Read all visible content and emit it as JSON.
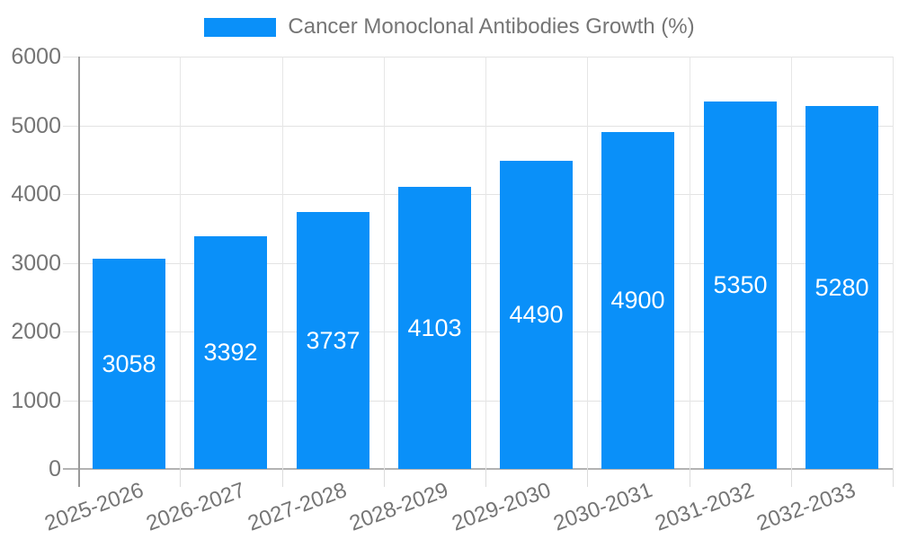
{
  "legend": {
    "label": "Cancer Monoclonal Antibodies Growth (%)"
  },
  "chart_data": {
    "type": "bar",
    "title": "Cancer Monoclonal Antibodies Growth (%)",
    "categories": [
      "2025-2026",
      "2026-2027",
      "2027-2028",
      "2028-2029",
      "2029-2030",
      "2030-2031",
      "2031-2032",
      "2032-2033"
    ],
    "values": [
      3058,
      3392,
      3737,
      4103,
      4490,
      4900,
      5350,
      5280
    ],
    "xlabel": "",
    "ylabel": "",
    "ylim": [
      0,
      6000
    ],
    "yticks": [
      0,
      1000,
      2000,
      3000,
      4000,
      5000,
      6000
    ],
    "grid": true,
    "legend_position": "top-center",
    "value_labels": "inside-center",
    "x_tick_rotation_deg": -20,
    "colors": {
      "bar": "#0a90f9",
      "value_label": "#ffffff",
      "axis_text": "#757575",
      "gridline": "#e3e3e3",
      "vertical_gridline": "#e6e6e6",
      "tick": "#dcdcdc",
      "y_axis_line": "#999999",
      "x_axis_line": "#b3b3b3",
      "background": "#ffffff"
    }
  }
}
